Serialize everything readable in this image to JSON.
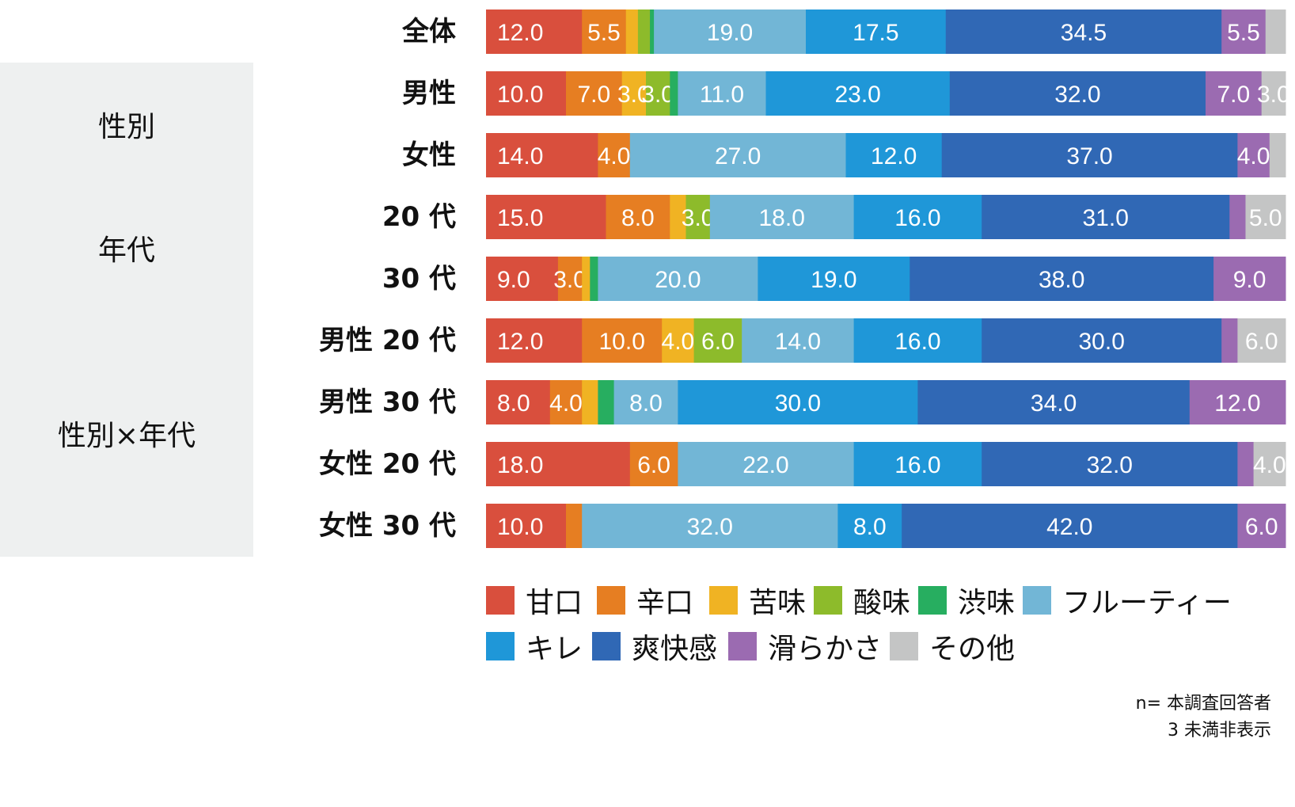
{
  "groups": [
    {
      "label": "性別",
      "rows": [
        1,
        2
      ]
    },
    {
      "label": "年代",
      "rows": [
        3,
        4
      ]
    },
    {
      "label": "性別×年代",
      "rows": [
        5,
        8
      ]
    }
  ],
  "notes": [
    "n= 本調査回答者",
    "3 未満非表示"
  ],
  "chart_data": {
    "type": "bar",
    "orientation": "horizontal",
    "stacked": "100%",
    "categories": [
      "全体",
      "男性",
      "女性",
      "20 代",
      "30 代",
      "男性 20 代",
      "男性 30 代",
      "女性 20 代",
      "女性 30 代"
    ],
    "series": [
      {
        "name": "甘口",
        "color": "#d94f3d",
        "values": [
          12.0,
          10.0,
          14.0,
          15.0,
          9.0,
          12.0,
          8.0,
          18.0,
          10.0
        ]
      },
      {
        "name": "辛口",
        "color": "#e67e22",
        "values": [
          5.5,
          7.0,
          4.0,
          8.0,
          3.0,
          10.0,
          4.0,
          6.0,
          2.0
        ]
      },
      {
        "name": "苦味",
        "color": "#f0b323",
        "values": [
          1.5,
          3.0,
          0,
          2.0,
          1.0,
          4.0,
          2.0,
          0,
          0
        ]
      },
      {
        "name": "酸味",
        "color": "#8dbb2b",
        "values": [
          1.5,
          3.0,
          0,
          3.0,
          0,
          6.0,
          0,
          0,
          0
        ]
      },
      {
        "name": "渋味",
        "color": "#27ae60",
        "values": [
          0.5,
          1.0,
          0,
          0,
          1.0,
          0,
          2.0,
          0,
          0
        ]
      },
      {
        "name": "フルーティー",
        "color": "#72b6d6",
        "values": [
          19.0,
          11.0,
          27.0,
          18.0,
          20.0,
          14.0,
          8.0,
          22.0,
          32.0
        ]
      },
      {
        "name": "キレ",
        "color": "#1f97d8",
        "values": [
          17.5,
          23.0,
          12.0,
          16.0,
          19.0,
          16.0,
          30.0,
          16.0,
          8.0
        ]
      },
      {
        "name": "爽快感",
        "color": "#3068b5",
        "values": [
          34.5,
          32.0,
          37.0,
          31.0,
          38.0,
          30.0,
          34.0,
          32.0,
          42.0
        ]
      },
      {
        "name": "滑らかさ",
        "color": "#9b6bb1",
        "values": [
          5.5,
          7.0,
          4.0,
          2.0,
          9.0,
          2.0,
          12.0,
          2.0,
          6.0
        ]
      },
      {
        "name": "その他",
        "color": "#c4c5c5",
        "values": [
          2.5,
          3.0,
          2.0,
          5.0,
          0,
          6.0,
          0,
          4.0,
          0
        ]
      }
    ],
    "label_threshold": 3,
    "xlim": [
      0,
      100
    ],
    "grid": false,
    "legend_position": "bottom"
  }
}
